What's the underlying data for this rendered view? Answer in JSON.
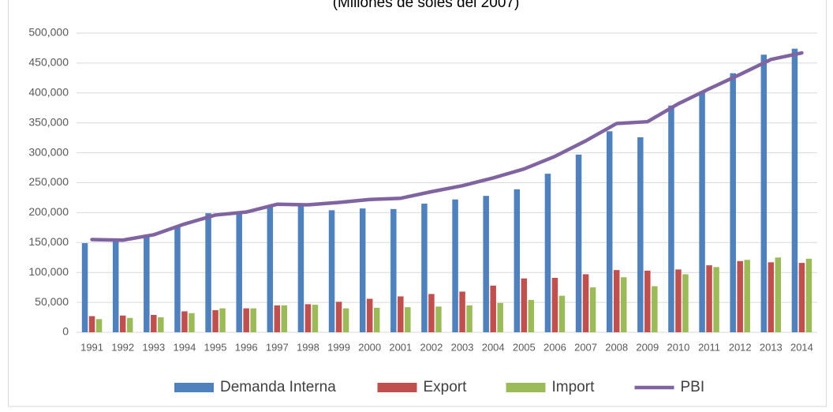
{
  "chart_data": {
    "type": "bar",
    "subtitle": "(Millones de soles del 2007)",
    "categories": [
      "1991",
      "1992",
      "1993",
      "1994",
      "1995",
      "1996",
      "1997",
      "1998",
      "1999",
      "2000",
      "2001",
      "2002",
      "2003",
      "2004",
      "2005",
      "2006",
      "2007",
      "2008",
      "2009",
      "2010",
      "2011",
      "2012",
      "2013",
      "2014"
    ],
    "series": [
      {
        "name": "Demanda Interna",
        "color": "#4f81bd",
        "type": "bar",
        "values": [
          149000,
          152000,
          162000,
          178000,
          199000,
          201000,
          212000,
          213000,
          204000,
          207000,
          206000,
          215000,
          222000,
          228000,
          239000,
          265000,
          297000,
          336000,
          326000,
          379000,
          401000,
          433000,
          464000,
          474000
        ]
      },
      {
        "name": "Export",
        "color": "#c0504d",
        "type": "bar",
        "values": [
          27000,
          28000,
          29000,
          35000,
          37000,
          40000,
          45000,
          47000,
          51000,
          56000,
          60000,
          64000,
          68000,
          78000,
          90000,
          91000,
          97000,
          104000,
          103000,
          105000,
          112000,
          119000,
          117000,
          116000
        ]
      },
      {
        "name": "Import",
        "color": "#9bbb59",
        "type": "bar",
        "values": [
          22000,
          24000,
          25000,
          32000,
          40000,
          40000,
          45000,
          46000,
          40000,
          41000,
          42000,
          43000,
          45000,
          49000,
          54000,
          61000,
          75000,
          92000,
          77000,
          97000,
          109000,
          121000,
          125000,
          123000
        ]
      },
      {
        "name": "PBI",
        "color": "#8064a2",
        "type": "line",
        "values": [
          155000,
          154000,
          163000,
          181000,
          196000,
          201000,
          214000,
          213000,
          217000,
          222000,
          224000,
          235000,
          245000,
          258000,
          273000,
          294000,
          320000,
          349000,
          352000,
          382000,
          407000,
          431000,
          456000,
          467000
        ]
      }
    ],
    "ylim": [
      0,
      500000
    ],
    "yticks": [
      0,
      {
        "value": 50000,
        "label": "50,000"
      },
      {
        "value": 100000,
        "label": "100,000"
      },
      {
        "value": 150000,
        "label": "150,000"
      },
      {
        "value": 200000,
        "label": "200,000"
      },
      {
        "value": 250000,
        "label": "250,000"
      },
      {
        "value": 300000,
        "label": "300,000"
      },
      {
        "value": 350000,
        "label": "350,000"
      },
      {
        "value": 400000,
        "label": "400,000"
      },
      {
        "value": 450000,
        "label": "450,000"
      },
      {
        "value": 500000,
        "label": "500,000"
      }
    ],
    "grid": true,
    "legend": "bottom"
  }
}
